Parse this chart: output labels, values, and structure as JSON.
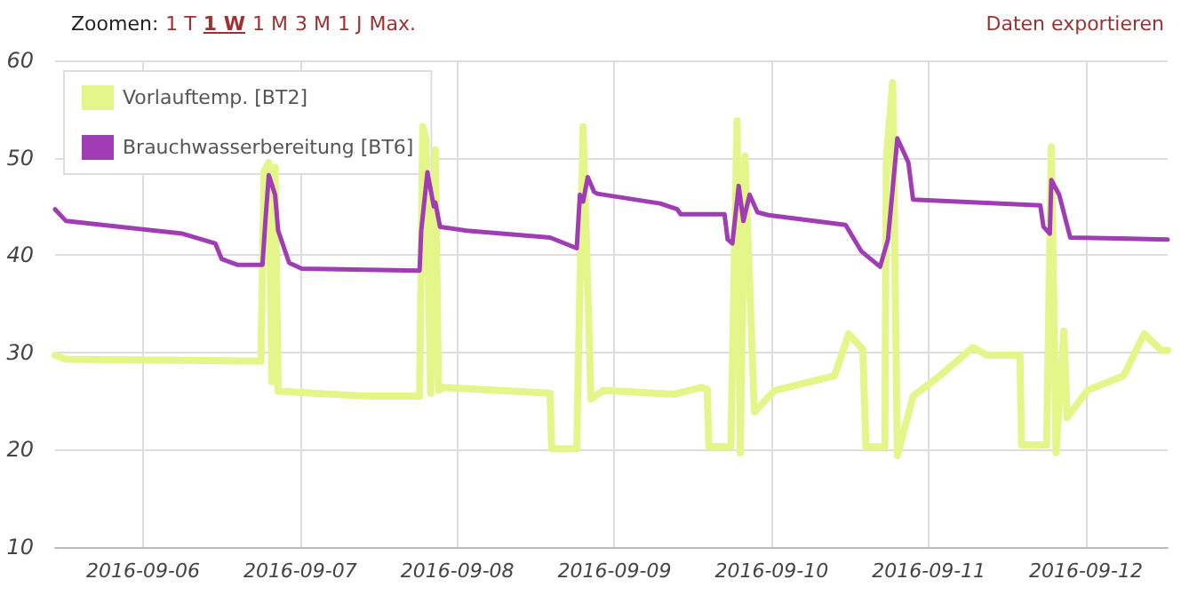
{
  "chart_data": {
    "type": "line",
    "annotations": [
      "Zoomen:",
      "1 T",
      "1 W",
      "1 M",
      "3 M",
      "1 J",
      "Max.",
      "Daten exportieren"
    ],
    "xlim": [
      "2016-09-05T10:34",
      "2016-09-12T12:29"
    ],
    "xticks": [
      "2016-09-06",
      "2016-09-07",
      "2016-09-08",
      "2016-09-09",
      "2016-09-10",
      "2016-09-11",
      "2016-09-12"
    ],
    "ylim": [
      10,
      60
    ],
    "yticks": [
      10,
      20,
      30,
      40,
      50,
      60
    ],
    "grid": true,
    "legend": "top left",
    "marker": "none",
    "line_style": "solid",
    "series": [
      {
        "name": "Vorlauftemp. [BT2]",
        "color": "#e4f58a",
        "x": [
          "2016-09-05T10:34",
          "2016-09-05T12:14",
          "2016-09-06T18:00",
          "2016-09-06T18:29",
          "2016-09-06T19:12",
          "2016-09-06T19:41",
          "2016-09-06T20:10",
          "2016-09-06T20:38",
          "2016-09-06T21:22",
          "2016-09-07T10:05",
          "2016-09-07T18:14",
          "2016-09-07T18:43",
          "2016-09-07T19:12",
          "2016-09-07T19:55",
          "2016-09-07T20:38",
          "2016-09-07T21:07",
          "2016-09-07T21:50",
          "2016-09-08T14:10",
          "2016-09-08T14:24",
          "2016-09-08T18:14",
          "2016-09-08T19:12",
          "2016-09-08T20:24",
          "2016-09-08T22:19",
          "2016-09-09T09:07",
          "2016-09-09T13:12",
          "2016-09-09T14:10",
          "2016-09-09T14:24",
          "2016-09-09T17:46",
          "2016-09-09T18:43",
          "2016-09-09T19:12",
          "2016-09-09T19:55",
          "2016-09-09T21:22",
          "2016-09-10T00:29",
          "2016-09-10T09:36",
          "2016-09-10T11:46",
          "2016-09-10T13:55",
          "2016-09-10T14:24",
          "2016-09-10T17:17",
          "2016-09-10T17:31",
          "2016-09-10T18:29",
          "2016-09-10T19:12",
          "2016-09-10T21:36",
          "2016-09-11T01:41",
          "2016-09-11T06:43",
          "2016-09-11T08:53",
          "2016-09-11T13:55",
          "2016-09-11T14:10",
          "2016-09-11T18:00",
          "2016-09-11T18:43",
          "2016-09-11T19:26",
          "2016-09-11T20:38",
          "2016-09-11T21:07",
          "2016-09-12T00:14",
          "2016-09-12T05:46",
          "2016-09-12T08:53",
          "2016-09-12T11:31",
          "2016-09-12T12:29"
        ],
        "values": [
          29.7,
          29.3,
          29.1,
          48.6,
          49.5,
          27.0,
          49.0,
          26.0,
          26.0,
          25.5,
          25.5,
          53.2,
          51.9,
          25.8,
          50.8,
          26.1,
          26.4,
          25.8,
          20.1,
          20.1,
          53.2,
          25.2,
          26.1,
          25.7,
          26.4,
          26.2,
          20.3,
          20.3,
          53.8,
          19.7,
          50.2,
          23.9,
          26.1,
          27.6,
          31.9,
          30.3,
          20.3,
          20.3,
          49.9,
          57.7,
          19.4,
          25.5,
          27.6,
          30.5,
          29.7,
          29.7,
          20.5,
          20.5,
          51.1,
          19.7,
          32.2,
          23.3,
          26.1,
          27.6,
          31.9,
          30.2,
          30.2
        ]
      },
      {
        "name": "Brauchwasserbereitung [BT6]",
        "color": "#a03cb4",
        "x": [
          "2016-09-05T10:34",
          "2016-09-05T12:14",
          "2016-09-06T06:00",
          "2016-09-06T11:02",
          "2016-09-06T12:00",
          "2016-09-06T14:24",
          "2016-09-06T18:14",
          "2016-09-06T18:43",
          "2016-09-06T19:12",
          "2016-09-06T20:10",
          "2016-09-06T20:38",
          "2016-09-06T22:19",
          "2016-09-07T00:14",
          "2016-09-07T18:14",
          "2016-09-07T18:29",
          "2016-09-07T19:26",
          "2016-09-07T20:24",
          "2016-09-07T20:38",
          "2016-09-07T21:22",
          "2016-09-08T01:26",
          "2016-09-08T14:10",
          "2016-09-08T18:14",
          "2016-09-08T18:43",
          "2016-09-08T19:12",
          "2016-09-08T19:55",
          "2016-09-08T20:53",
          "2016-09-08T21:22",
          "2016-09-09T06:58",
          "2016-09-09T09:36",
          "2016-09-09T10:05",
          "2016-09-09T16:48",
          "2016-09-09T17:17",
          "2016-09-09T18:00",
          "2016-09-09T18:58",
          "2016-09-09T19:41",
          "2016-09-09T20:38",
          "2016-09-09T21:50",
          "2016-09-09T23:31",
          "2016-09-10T11:17",
          "2016-09-10T13:41",
          "2016-09-10T16:34",
          "2016-09-10T17:46",
          "2016-09-10T19:12",
          "2016-09-10T20:53",
          "2016-09-10T21:36",
          "2016-09-11T17:02",
          "2016-09-11T17:31",
          "2016-09-11T18:29",
          "2016-09-11T18:43",
          "2016-09-11T19:55",
          "2016-09-11T21:36",
          "2016-09-12T12:29"
        ],
        "values": [
          44.7,
          43.5,
          42.2,
          41.2,
          39.6,
          39.0,
          39.0,
          43.8,
          48.2,
          46.2,
          42.5,
          39.2,
          38.6,
          38.4,
          42.5,
          48.5,
          45.0,
          45.4,
          42.9,
          42.5,
          41.8,
          40.7,
          46.2,
          45.5,
          48.0,
          46.5,
          46.3,
          45.3,
          44.7,
          44.2,
          44.2,
          41.6,
          41.2,
          47.1,
          43.5,
          46.2,
          44.4,
          44.1,
          43.1,
          40.4,
          38.8,
          41.6,
          52.0,
          49.5,
          45.7,
          45.1,
          42.9,
          42.2,
          47.7,
          46.2,
          41.8,
          41.6
        ]
      }
    ]
  }
}
